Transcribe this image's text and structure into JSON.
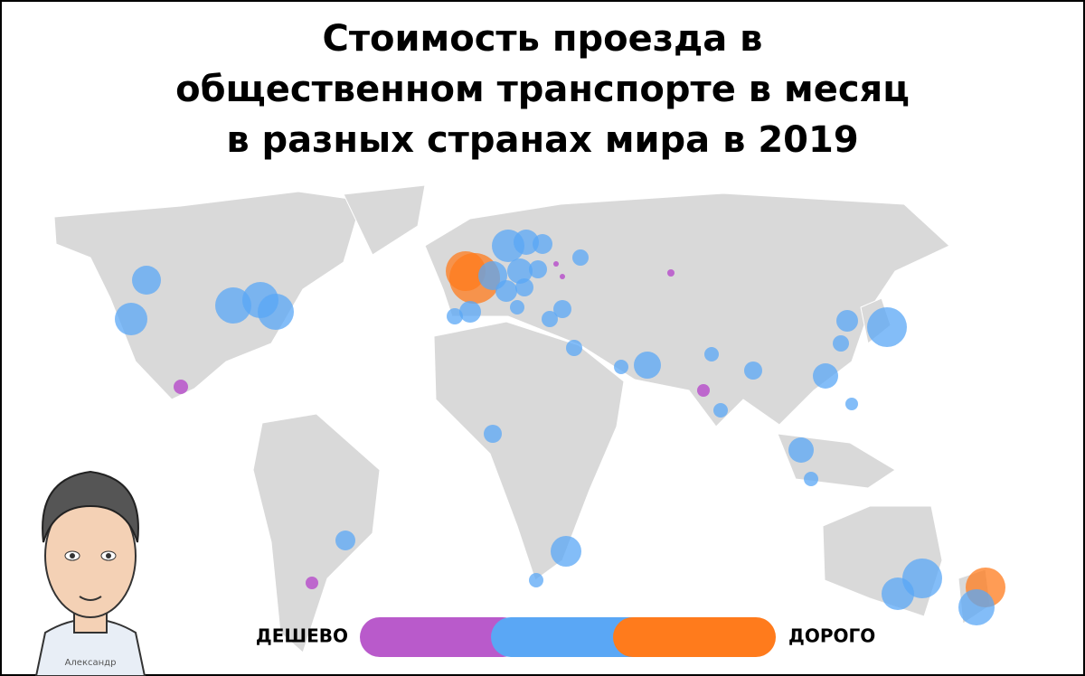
{
  "header": {
    "title": {
      "lines": [
        "Стоимость проезда в",
        "общественном транспорте в месяц",
        "в разных странах мира в 2019"
      ]
    }
  },
  "legend": {
    "low": "ДЕШЕВО",
    "high": "ДОРОГО"
  },
  "author": {
    "name": "Александр"
  }
}
